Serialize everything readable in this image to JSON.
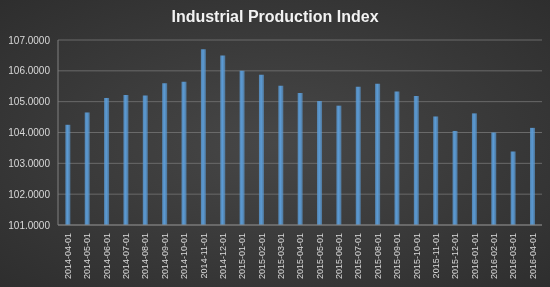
{
  "chart_data": {
    "type": "bar",
    "title": "Industrial Production Index",
    "categories": [
      "2014-04-01",
      "2014-05-01",
      "2014-06-01",
      "2014-07-01",
      "2014-08-01",
      "2014-09-01",
      "2014-10-01",
      "2014-11-01",
      "2014-12-01",
      "2015-01-01",
      "2015-02-01",
      "2015-03-01",
      "2015-04-01",
      "2015-05-01",
      "2015-06-01",
      "2015-07-01",
      "2015-08-01",
      "2015-09-01",
      "2015-10-01",
      "2015-11-01",
      "2015-12-01",
      "2016-01-01",
      "2016-02-01",
      "2016-03-01",
      "2016-04-01"
    ],
    "values": [
      104.25,
      104.65,
      105.12,
      105.22,
      105.2,
      105.6,
      105.65,
      106.7,
      106.5,
      106.0,
      105.87,
      105.52,
      105.28,
      105.02,
      104.87,
      105.48,
      105.58,
      105.33,
      105.18,
      104.52,
      104.05,
      104.62,
      104.0,
      103.38,
      104.15
    ],
    "color": "#5b9bd5",
    "ylim": [
      101,
      107
    ],
    "yticks": [
      {
        "value": 101,
        "label": "101.0000"
      },
      {
        "value": 102,
        "label": "102.0000"
      },
      {
        "value": 103,
        "label": "103.0000"
      },
      {
        "value": 104,
        "label": "104.0000"
      },
      {
        "value": 105,
        "label": "105.0000"
      },
      {
        "value": 106,
        "label": "106.0000"
      },
      {
        "value": 107,
        "label": "107.0000"
      }
    ],
    "grid": true
  }
}
